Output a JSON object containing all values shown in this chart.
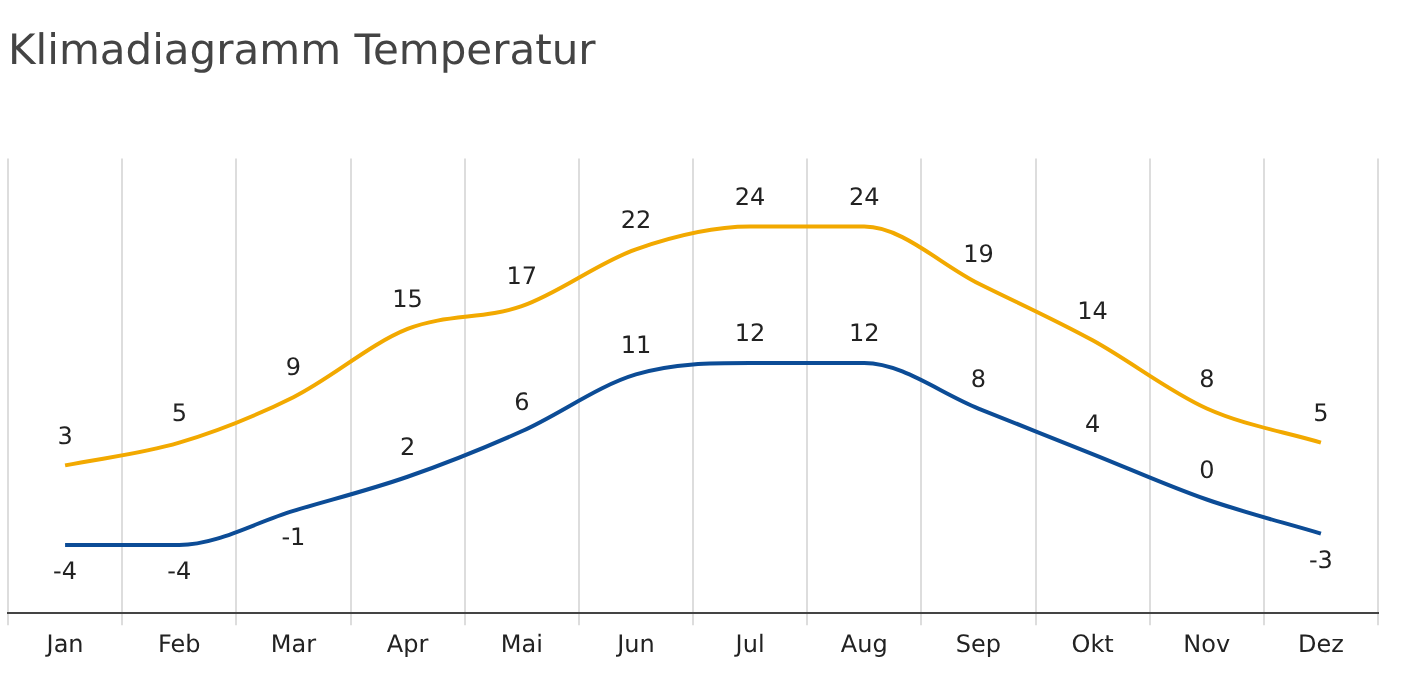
{
  "chart_data": {
    "type": "line",
    "title": "Klimadiagramm Temperatur",
    "categories": [
      "Jan",
      "Feb",
      "Mar",
      "Apr",
      "Mai",
      "Jun",
      "Jul",
      "Aug",
      "Sep",
      "Okt",
      "Nov",
      "Dez"
    ],
    "series": [
      {
        "color": "#f2a900",
        "values": [
          3,
          5,
          9,
          15,
          17,
          22,
          24,
          24,
          19,
          14,
          8,
          5
        ]
      },
      {
        "color": "#0c4c96",
        "values": [
          -4,
          -4,
          -1,
          2,
          6,
          11,
          12,
          12,
          8,
          4,
          0,
          -3
        ]
      }
    ],
    "data_labels": true,
    "grid": "x",
    "legend": false,
    "marker": "none",
    "line_style": "solid"
  }
}
